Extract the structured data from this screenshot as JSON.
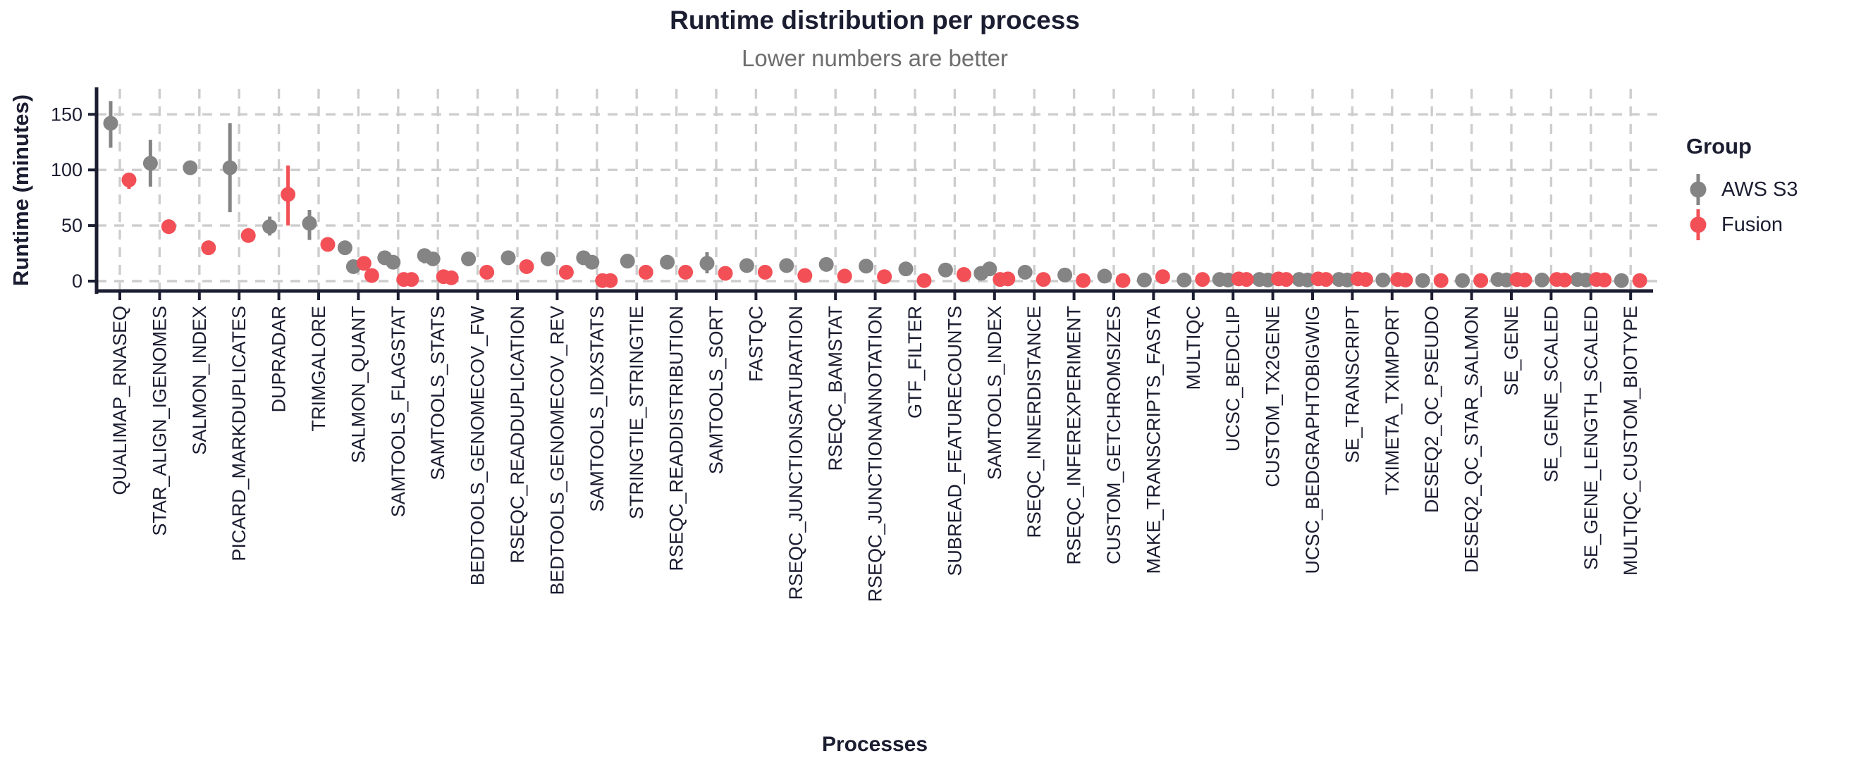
{
  "chart_data": {
    "type": "scatter",
    "title": "Runtime distribution per process",
    "subtitle": "Lower numbers are better",
    "xlabel": "Processes",
    "ylabel": "Runtime (minutes)",
    "legend_title": "Group",
    "legend_position": "right",
    "grid": "dashed, both axes",
    "yticks": [
      0,
      50,
      100,
      150
    ],
    "ylim": [
      0,
      170
    ],
    "units": "minutes",
    "categories": [
      "QUALIMAP_RNASEQ",
      "STAR_ALIGN_IGENOMES",
      "SALMON_INDEX",
      "PICARD_MARKDUPLICATES",
      "DUPRADAR",
      "TRIMGALORE",
      "SALMON_QUANT",
      "SAMTOOLS_FLAGSTAT",
      "SAMTOOLS_STATS",
      "BEDTOOLS_GENOMECOV_FW",
      "RSEQC_READDUPLICATION",
      "BEDTOOLS_GENOMECOV_REV",
      "SAMTOOLS_IDXSTATS",
      "STRINGTIE_STRINGTIE",
      "RSEQC_READDISTRIBUTION",
      "SAMTOOLS_SORT",
      "FASTQC",
      "RSEQC_JUNCTIONSATURATION",
      "RSEQC_BAMSTAT",
      "RSEQC_JUNCTIONANNOTATION",
      "GTF_FILTER",
      "SUBREAD_FEATURECOUNTS",
      "SAMTOOLS_INDEX",
      "RSEQC_INNERDISTANCE",
      "RSEQC_INFEREXPERIMENT",
      "CUSTOM_GETCHROMSIZES",
      "MAKE_TRANSCRIPTS_FASTA",
      "MULTIQC",
      "UCSC_BEDCLIP",
      "CUSTOM_TX2GENE",
      "UCSC_BEDGRAPHTOBIGWIG",
      "SE_TRANSCRIPT",
      "TXIMETA_TXIMPORT",
      "DESEQ2_QC_PSEUDO",
      "DESEQ2_QC_STAR_SALMON",
      "SE_GENE",
      "SE_GENE_SCALED",
      "SE_GENE_LENGTH_SCALED",
      "MULTIQC_CUSTOM_BIOTYPE"
    ],
    "series": [
      {
        "name": "AWS S3",
        "color": "#848484",
        "points": [
          [
            142
          ],
          [
            106
          ],
          [
            102
          ],
          [
            102
          ],
          [
            49
          ],
          [
            52
          ],
          [
            30,
            13
          ],
          [
            21,
            17
          ],
          [
            23,
            20
          ],
          [
            20
          ],
          [
            21
          ],
          [
            20
          ],
          [
            21,
            17
          ],
          [
            18
          ],
          [
            17
          ],
          [
            16
          ],
          [
            14
          ],
          [
            14
          ],
          [
            15
          ],
          [
            13.5
          ],
          [
            11
          ],
          [
            10
          ],
          [
            7,
            11
          ],
          [
            8
          ],
          [
            5.5
          ],
          [
            4.5
          ],
          [
            1
          ],
          [
            1
          ],
          [
            1.5,
            1
          ],
          [
            1.5,
            1
          ],
          [
            1.5,
            1
          ],
          [
            1.5,
            1
          ],
          [
            1
          ],
          [
            0.5
          ],
          [
            0.5
          ],
          [
            1.5,
            1
          ],
          [
            1
          ],
          [
            1.5,
            1
          ],
          [
            0.5
          ]
        ],
        "ranges": [
          [
            120,
            162
          ],
          [
            85,
            127
          ],
          null,
          [
            62,
            142
          ],
          [
            41,
            58
          ],
          [
            37,
            64
          ],
          null,
          null,
          [
            16,
            27
          ],
          null,
          null,
          null,
          null,
          null,
          null,
          [
            7,
            26
          ],
          null,
          null,
          null,
          null,
          null,
          null,
          null,
          null,
          null,
          null,
          null,
          null,
          null,
          null,
          null,
          null,
          null,
          null,
          null,
          null,
          null,
          null,
          null
        ]
      },
      {
        "name": "Fusion",
        "color": "#f25056",
        "points": [
          [
            91
          ],
          [
            49
          ],
          [
            30
          ],
          [
            41
          ],
          [
            78
          ],
          [
            33
          ],
          [
            16,
            5
          ],
          [
            1.5,
            1.5
          ],
          [
            4,
            3
          ],
          [
            8
          ],
          [
            13
          ],
          [
            8
          ],
          [
            0.5,
            0.5
          ],
          [
            8
          ],
          [
            8
          ],
          [
            7
          ],
          [
            8
          ],
          [
            5
          ],
          [
            4.5
          ],
          [
            4
          ],
          [
            0.5
          ],
          [
            6
          ],
          [
            1.5,
            2
          ],
          [
            1.5
          ],
          [
            0.5
          ],
          [
            0.5
          ],
          [
            4
          ],
          [
            1.5
          ],
          [
            2,
            1.5
          ],
          [
            2,
            1.5
          ],
          [
            2,
            1.5
          ],
          [
            2,
            1.5
          ],
          [
            1.5,
            1
          ],
          [
            0.5
          ],
          [
            0.5
          ],
          [
            1.5,
            1
          ],
          [
            1.5,
            1
          ],
          [
            1.5,
            1
          ],
          [
            0.5
          ]
        ],
        "ranges": [
          [
            83,
            97
          ],
          null,
          null,
          null,
          [
            50,
            104
          ],
          null,
          null,
          null,
          null,
          null,
          null,
          null,
          null,
          null,
          null,
          null,
          null,
          null,
          null,
          null,
          null,
          null,
          null,
          null,
          null,
          null,
          null,
          null,
          null,
          null,
          null,
          null,
          null,
          null,
          null,
          null,
          null,
          null,
          null
        ]
      }
    ]
  }
}
